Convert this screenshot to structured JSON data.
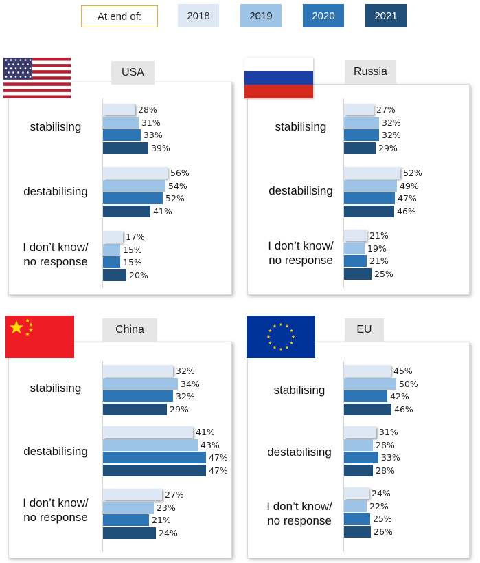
{
  "legend": {
    "label": "At end of:",
    "items": [
      {
        "year": "2018",
        "color": "#dde8f4",
        "text_color": "#333333"
      },
      {
        "year": "2019",
        "color": "#9dc3e6",
        "text_color": "#222222"
      },
      {
        "year": "2020",
        "color": "#2e75b6",
        "text_color": "#ffffff"
      },
      {
        "year": "2021",
        "color": "#1f4e79",
        "text_color": "#ffffff"
      }
    ]
  },
  "chart_data": [
    {
      "type": "bar",
      "region": "USA",
      "flag": "usa-flag",
      "categories": [
        "stabilising",
        "destabilising",
        "I don’t know/\nno response"
      ],
      "series": [
        {
          "name": "2018",
          "values": [
            28,
            56,
            17
          ]
        },
        {
          "name": "2019",
          "values": [
            31,
            54,
            15
          ]
        },
        {
          "name": "2020",
          "values": [
            33,
            52,
            15
          ]
        },
        {
          "name": "2021",
          "values": [
            39,
            41,
            20
          ]
        }
      ]
    },
    {
      "type": "bar",
      "region": "Russia",
      "flag": "russia-flag",
      "categories": [
        "stabilising",
        "destabilising",
        "I don’t know/\nno response"
      ],
      "series": [
        {
          "name": "2018",
          "values": [
            27,
            52,
            21
          ]
        },
        {
          "name": "2019",
          "values": [
            32,
            49,
            19
          ]
        },
        {
          "name": "2020",
          "values": [
            32,
            47,
            21
          ]
        },
        {
          "name": "2021",
          "values": [
            29,
            46,
            25
          ]
        }
      ]
    },
    {
      "type": "bar",
      "region": "China",
      "flag": "china-flag",
      "categories": [
        "stabilising",
        "destabilising",
        "I don’t know/\nno response"
      ],
      "series": [
        {
          "name": "2018",
          "values": [
            32,
            41,
            27
          ]
        },
        {
          "name": "2019",
          "values": [
            34,
            43,
            23
          ]
        },
        {
          "name": "2020",
          "values": [
            32,
            47,
            21
          ]
        },
        {
          "name": "2021",
          "values": [
            29,
            47,
            24
          ]
        }
      ]
    },
    {
      "type": "bar",
      "region": "EU",
      "flag": "eu-flag",
      "categories": [
        "stabilising",
        "destabilising",
        "I don’t know/\nno response"
      ],
      "series": [
        {
          "name": "2018",
          "values": [
            45,
            31,
            24
          ]
        },
        {
          "name": "2019",
          "values": [
            50,
            28,
            22
          ]
        },
        {
          "name": "2020",
          "values": [
            42,
            33,
            25
          ]
        },
        {
          "name": "2021",
          "values": [
            46,
            28,
            26
          ]
        }
      ]
    }
  ]
}
